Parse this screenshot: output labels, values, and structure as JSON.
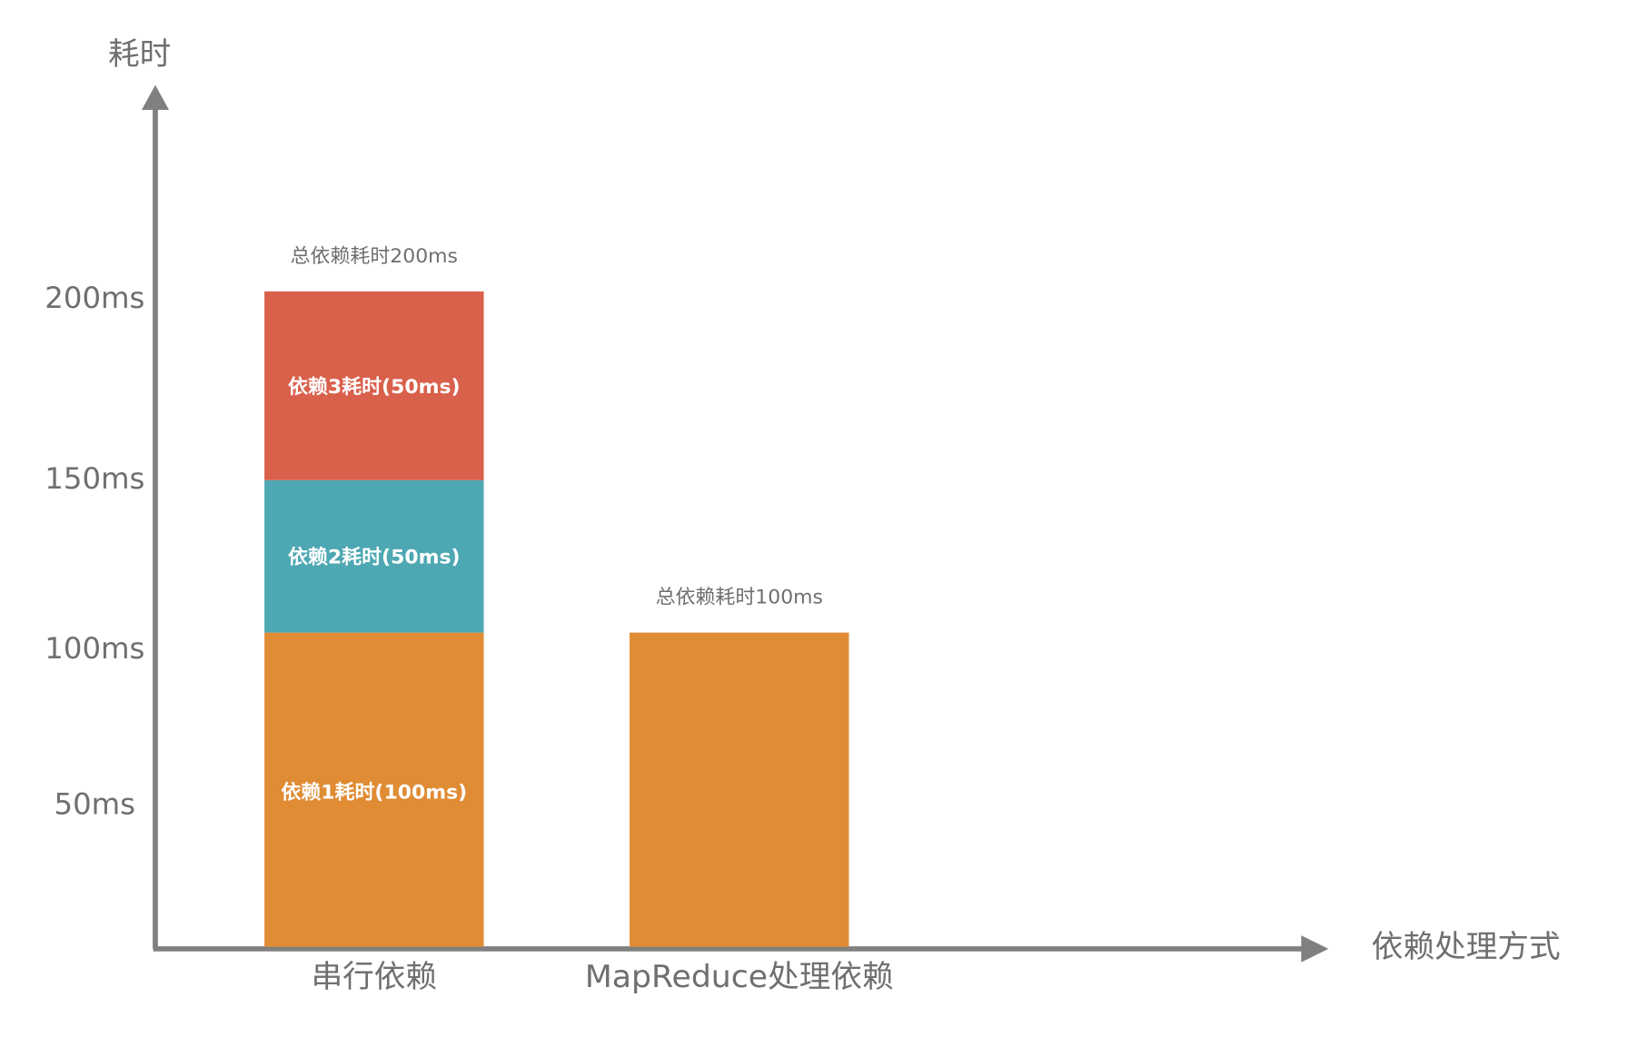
{
  "chart_data": {
    "type": "bar",
    "stacked": true,
    "title": "",
    "xlabel": "依赖处理方式",
    "ylabel": "耗时",
    "ylim": [
      0,
      200
    ],
    "y_ticks": [
      "50ms",
      "100ms",
      "150ms",
      "200ms"
    ],
    "y_tick_values": [
      50,
      100,
      150,
      200
    ],
    "grid": false,
    "categories": [
      "串行依赖",
      "MapReduce处理依赖"
    ],
    "segments": [
      {
        "category": "串行依赖",
        "start": 0,
        "end": 100,
        "value": 100,
        "label": "依赖1耗时(100ms)",
        "color": "#E08C34"
      },
      {
        "category": "串行依赖",
        "start": 100,
        "end": 150,
        "value": 50,
        "label": "依赖2耗时(50ms)",
        "color": "#4EA8B3"
      },
      {
        "category": "串行依赖",
        "start": 150,
        "end": 200,
        "value": 50,
        "label": "依赖3耗时(50ms)",
        "color": "#D9604B"
      },
      {
        "category": "MapReduce处理依赖",
        "start": 0,
        "end": 100,
        "value": 100,
        "label": "",
        "color": "#E08C34"
      }
    ],
    "totals": [
      "总依赖耗时200ms",
      "总依赖耗时100ms"
    ],
    "axis_color": "#808080"
  }
}
